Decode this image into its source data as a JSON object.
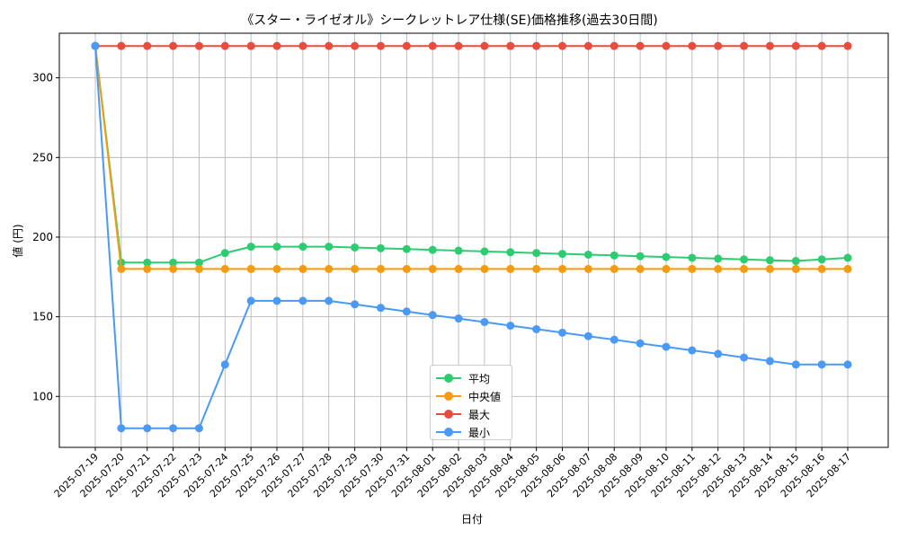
{
  "chart_data": {
    "type": "line",
    "title": "《スター・ライゼオル》シークレットレア仕様(SE)価格推移(過去30日間)",
    "xlabel": "日付",
    "ylabel": "値 (円)",
    "ylim": [
      68,
      328
    ],
    "yticks": [
      100,
      150,
      200,
      250,
      300
    ],
    "grid": true,
    "legend_position": "lower-center",
    "categories": [
      "2025-07-19",
      "2025-07-20",
      "2025-07-21",
      "2025-07-22",
      "2025-07-23",
      "2025-07-24",
      "2025-07-25",
      "2025-07-26",
      "2025-07-27",
      "2025-07-28",
      "2025-07-29",
      "2025-07-30",
      "2025-07-31",
      "2025-08-01",
      "2025-08-02",
      "2025-08-03",
      "2025-08-04",
      "2025-08-05",
      "2025-08-06",
      "2025-08-07",
      "2025-08-08",
      "2025-08-09",
      "2025-08-10",
      "2025-08-11",
      "2025-08-12",
      "2025-08-13",
      "2025-08-14",
      "2025-08-15",
      "2025-08-16",
      "2025-08-17"
    ],
    "series": [
      {
        "name": "平均",
        "color": "#2ecc71",
        "values": [
          320,
          184,
          184,
          184,
          184,
          190,
          194,
          194,
          194,
          194,
          193.5,
          193,
          192.5,
          192,
          191.5,
          191,
          190.5,
          190,
          189.5,
          189,
          188.5,
          188,
          187.5,
          187,
          186.5,
          186,
          185.5,
          185,
          186,
          187
        ]
      },
      {
        "name": "中央値",
        "color": "#f39c12",
        "values": [
          320,
          180,
          180,
          180,
          180,
          180,
          180,
          180,
          180,
          180,
          180,
          180,
          180,
          180,
          180,
          180,
          180,
          180,
          180,
          180,
          180,
          180,
          180,
          180,
          180,
          180,
          180,
          180,
          180,
          180
        ]
      },
      {
        "name": "最大",
        "color": "#e74c3c",
        "values": [
          320,
          320,
          320,
          320,
          320,
          320,
          320,
          320,
          320,
          320,
          320,
          320,
          320,
          320,
          320,
          320,
          320,
          320,
          320,
          320,
          320,
          320,
          320,
          320,
          320,
          320,
          320,
          320,
          320,
          320
        ]
      },
      {
        "name": "最小",
        "color": "#4a9af5",
        "values": [
          320,
          80,
          80,
          80,
          80,
          120,
          160,
          160,
          160,
          160,
          157.8,
          155.6,
          153.3,
          151.1,
          148.9,
          146.7,
          144.4,
          142.2,
          140,
          137.8,
          135.6,
          133.3,
          131.1,
          128.9,
          126.7,
          124.4,
          122.2,
          120,
          120,
          120
        ]
      }
    ]
  }
}
